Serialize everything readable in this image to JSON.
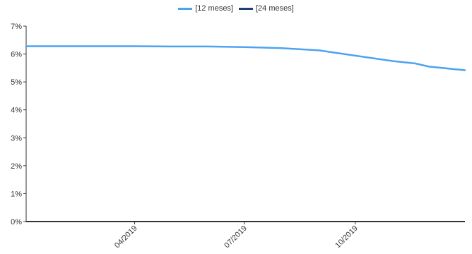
{
  "chart_data": {
    "type": "line",
    "title": "",
    "xlabel": "",
    "ylabel": "",
    "ylim": [
      0,
      7
    ],
    "yticks": [
      "0%",
      "1%",
      "2%",
      "3%",
      "4%",
      "5%",
      "6%",
      "7%"
    ],
    "xticks": [
      "04/2019",
      "07/2019",
      "10/2019"
    ],
    "xtick_dates": [
      "2019-04-01",
      "2019-07-01",
      "2019-10-01"
    ],
    "xlim": [
      "2019-01-01",
      "2019-12-31"
    ],
    "grid": false,
    "legend_position": "top-center",
    "series": [
      {
        "name": "[12 meses]",
        "color": "#4da3f0",
        "points": [
          [
            "2019-01-01",
            6.28
          ],
          [
            "2019-02-01",
            6.28
          ],
          [
            "2019-03-01",
            6.28
          ],
          [
            "2019-04-01",
            6.28
          ],
          [
            "2019-05-01",
            6.27
          ],
          [
            "2019-06-01",
            6.27
          ],
          [
            "2019-07-01",
            6.25
          ],
          [
            "2019-08-01",
            6.21
          ],
          [
            "2019-09-01",
            6.13
          ],
          [
            "2019-10-01",
            5.94
          ],
          [
            "2019-11-01",
            5.75
          ],
          [
            "2019-11-20",
            5.66
          ],
          [
            "2019-12-01",
            5.55
          ],
          [
            "2019-12-31",
            5.42
          ]
        ]
      },
      {
        "name": "[24 meses]",
        "color": "#1f3f73",
        "points": []
      }
    ]
  }
}
